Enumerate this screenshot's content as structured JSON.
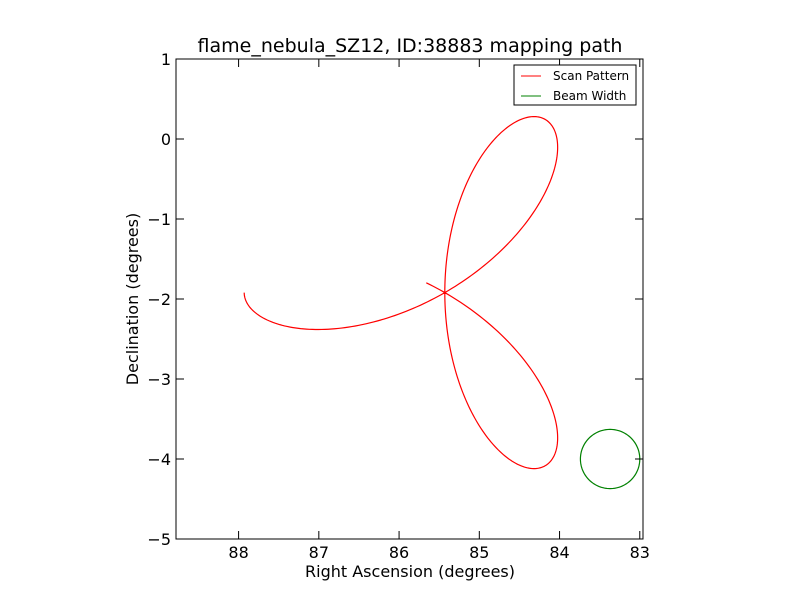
{
  "chart_data": {
    "type": "line",
    "title": "flame_nebula_SZ12, ID:38883 mapping path",
    "xlabel": "Right Ascension (degrees)",
    "ylabel": "Declination (degrees)",
    "xlim": [
      88.78,
      82.96
    ],
    "ylim": [
      -5,
      1
    ],
    "x_inverted": true,
    "grid": false,
    "legend_position": "top-right",
    "x_ticks": [
      88,
      87,
      86,
      85,
      84,
      83
    ],
    "x_tick_labels": [
      "88",
      "87",
      "86",
      "85",
      "84",
      "83"
    ],
    "y_ticks": [
      1,
      0,
      -1,
      -2,
      -3,
      -4,
      -5
    ],
    "y_tick_labels": [
      "1",
      "0",
      "−1",
      "−2",
      "−3",
      "−4",
      "−5"
    ],
    "series": [
      {
        "name": "Scan Pattern",
        "color": "#ff0000",
        "pattern": "three-petal rose",
        "center": {
          "ra": 85.43,
          "dec": -1.92
        },
        "petal_radius_deg": 2.5,
        "start_angle_deg": 28,
        "end_angle_deg": 180
      },
      {
        "name": "Beam Width",
        "color": "#008000",
        "pattern": "circle",
        "center": {
          "ra": 83.37,
          "dec": -4.0
        },
        "radius_deg": 0.37
      }
    ]
  }
}
